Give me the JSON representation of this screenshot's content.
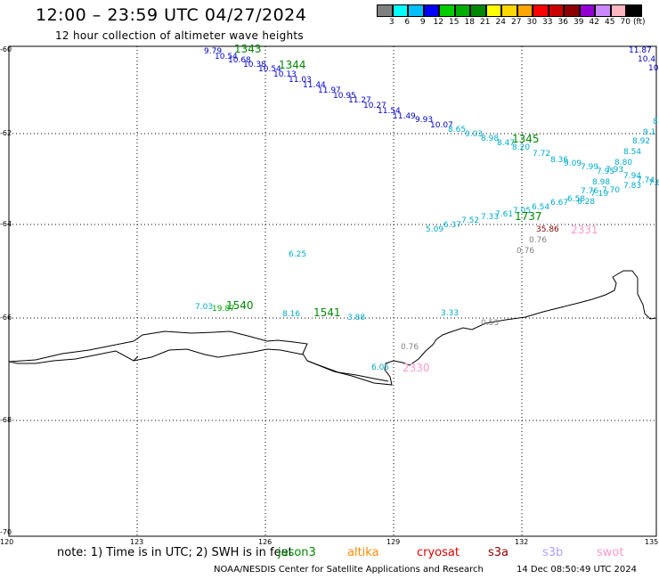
{
  "header": {
    "title": "12:00 – 23:59 UTC 04/27/2024",
    "subtitle": "12 hour collection of altimeter wave heights"
  },
  "legend": {
    "colors": [
      "#808080",
      "#00ffff",
      "#00bfff",
      "#0000ff",
      "#00cd00",
      "#00ad00",
      "#008800",
      "#ffff00",
      "#ffd700",
      "#ffa500",
      "#ff0000",
      "#cd0000",
      "#8b0000",
      "#9400d3",
      "#cc88ff",
      "#ffb6c1",
      "#000000"
    ],
    "labels": [
      "3",
      "6",
      "9",
      "12",
      "15",
      "18",
      "21",
      "24",
      "27",
      "30",
      "33",
      "36",
      "39",
      "42",
      "45",
      "70"
    ],
    "unit": "(ft)"
  },
  "axes": {
    "lat_labels": [
      "-60",
      "-62",
      "-64",
      "-66",
      "-68",
      "-70"
    ],
    "lon_labels": [
      "120",
      "123",
      "126",
      "129",
      "132",
      "135"
    ]
  },
  "tracks": {
    "t1343": {
      "id": "1343",
      "values": [
        "9.79",
        "10.54",
        "10.68",
        "10.38",
        "10.54",
        "10.13",
        "11.03",
        "11.44",
        "11.97",
        "10.95",
        "11.27",
        "10.27",
        "11.54",
        "11.49",
        "9.93",
        "10.07",
        "8.65",
        "9.03",
        "8.98",
        "8.47",
        "8.20"
      ]
    },
    "t1345": {
      "id": "1345",
      "values": [
        "7.72",
        "8.36",
        "9.09",
        "7.99",
        "7.95",
        "7.93",
        "8.80",
        "8.54",
        "8.92",
        "9.1",
        "8",
        "7.94",
        "7.74",
        "7.8"
      ]
    },
    "t1737": {
      "id": "1737",
      "values": [
        "5.09",
        "6.37",
        "7.52",
        "7.33",
        "7.61",
        "7.05",
        "6.54",
        "6.67",
        "6.58",
        "6.28",
        "7.76",
        "7.19",
        "7.70",
        "7.83",
        "8.98"
      ]
    },
    "t2331": {
      "id": "2331",
      "values": [
        "35.86",
        "0.76",
        "0.76"
      ]
    },
    "t1540": {
      "id": "1540",
      "values": [
        "7.03",
        "19.87"
      ]
    },
    "t1541": {
      "id": "1541",
      "values": [
        "8.16",
        "3.88"
      ]
    },
    "t2330": {
      "id": "2330",
      "values": [
        "6.05"
      ]
    },
    "misc": [
      "6.25",
      "3.33",
      "0.53",
      "0.76",
      "11.87",
      "10.4",
      "10"
    ]
  },
  "footer": {
    "note": "note:  1) Time is in UTC; 2) SWH is in feet",
    "satellites": [
      {
        "name": "jason3",
        "color": "#008800"
      },
      {
        "name": "altika",
        "color": "#ff8c00"
      },
      {
        "name": "cryosat",
        "color": "#e00000"
      },
      {
        "name": "s3a",
        "color": "#8b0000"
      },
      {
        "name": "s3b",
        "color": "#b0a0ff"
      },
      {
        "name": "swot",
        "color": "#ff99cc"
      }
    ],
    "credit": "NOAA/NESDIS Center for Satellite Applications and Research",
    "timestamp": "14 Dec 08:50:49 UTC 2024"
  }
}
